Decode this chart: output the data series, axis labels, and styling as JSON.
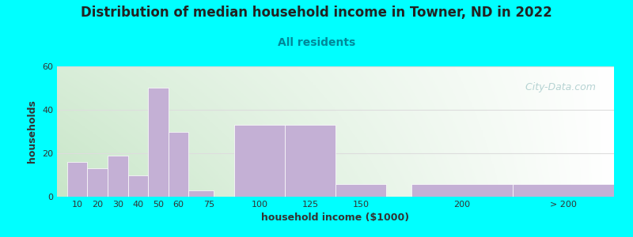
{
  "title": "Distribution of median household income in Towner, ND in 2022",
  "subtitle": "All residents",
  "xlabel": "household income ($1000)",
  "ylabel": "households",
  "background_color": "#00FFFF",
  "bar_color": "#C4B0D5",
  "bar_edge_color": "#FFFFFF",
  "title_fontsize": 12,
  "subtitle_fontsize": 10,
  "title_color": "#222222",
  "subtitle_color": "#008899",
  "watermark": "  City-Data.com",
  "watermark_color": "#aacccc",
  "categories": [
    "10",
    "20",
    "30",
    "40",
    "50",
    "60",
    "75",
    "100",
    "125",
    "150",
    "200",
    "> 200"
  ],
  "tick_positions": [
    10,
    20,
    30,
    40,
    50,
    60,
    75,
    100,
    125,
    150,
    200,
    250
  ],
  "bar_lefts": [
    5,
    15,
    25,
    35,
    45,
    55,
    65,
    87.5,
    112.5,
    137.5,
    175,
    225
  ],
  "bar_widths": [
    10,
    10,
    10,
    10,
    10,
    10,
    12.5,
    25,
    25,
    25,
    50,
    50
  ],
  "values": [
    16,
    13,
    19,
    10,
    50,
    30,
    3,
    33,
    33,
    6,
    6,
    6
  ],
  "ylim": [
    0,
    60
  ],
  "yticks": [
    0,
    20,
    40,
    60
  ],
  "xlim": [
    0,
    275
  ],
  "gradient_colors": [
    "#c8e6c0",
    "#f0f8f0",
    "#ffffff"
  ],
  "grid_color": "#dddddd"
}
